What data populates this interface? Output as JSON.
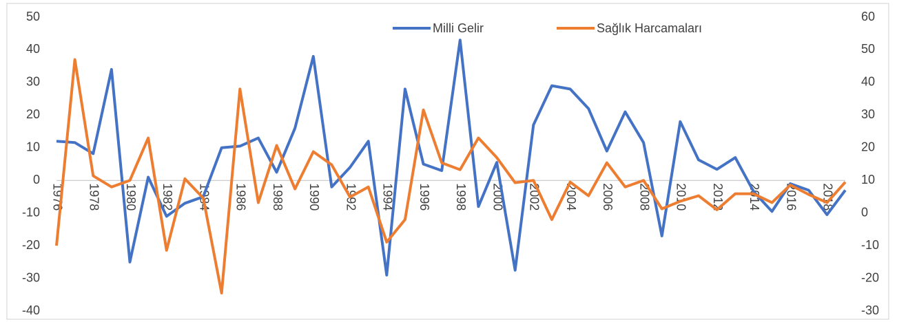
{
  "chart_data": {
    "type": "line",
    "categories": [
      "1976",
      null,
      "1978",
      null,
      "1980",
      null,
      "1982",
      null,
      "1984",
      null,
      "1986",
      null,
      "1988",
      null,
      "1990",
      null,
      "1992",
      null,
      "1994",
      null,
      "1996",
      null,
      "1998",
      null,
      "2000",
      null,
      "2002",
      null,
      "2004",
      null,
      "2006",
      null,
      "2008",
      null,
      "2010",
      null,
      "2012",
      null,
      "2014",
      null,
      "2016",
      null,
      "2018",
      null
    ],
    "series": [
      {
        "name": "Milli Gelir",
        "color": "#4472c4",
        "values": [
          12,
          11.6,
          8.2,
          34,
          -25,
          1,
          -11,
          -7,
          -5,
          10,
          10.5,
          13,
          2.5,
          16,
          38,
          -2,
          4,
          12,
          -29,
          28,
          5,
          3,
          43,
          -8,
          5.5,
          -27.5,
          17,
          29,
          28,
          22,
          9,
          21,
          11.6,
          -17,
          18,
          6.3,
          3.4,
          7,
          -3.4,
          -9.5,
          -1,
          -3,
          -10.5,
          -3
        ]
      },
      {
        "name": "Sağlık Harcamaları",
        "color": "#ed7d31",
        "axis": "y2",
        "values": [
          -10,
          47,
          11.4,
          8,
          10,
          23,
          -11.4,
          10.5,
          4.6,
          -24.5,
          38,
          3.2,
          20.7,
          7.4,
          18.8,
          14.8,
          4.9,
          8,
          -8.9,
          -2,
          31.6,
          15.4,
          13.3,
          23,
          17,
          9.3,
          10,
          -2,
          9.5,
          5.3,
          15.4,
          8,
          10,
          1.3,
          3.6,
          5.3,
          1,
          5.9,
          5.9,
          3.2,
          8.6,
          5.7,
          3.2,
          9.5
        ]
      }
    ],
    "ylim": [
      -40,
      50
    ],
    "yticks": [
      -40,
      -30,
      -20,
      -10,
      0,
      10,
      20,
      30,
      40,
      50
    ],
    "y2lim": [
      -30,
      60
    ],
    "y2ticks": [
      -30,
      -20,
      -10,
      0,
      10,
      20,
      30,
      40,
      50,
      60
    ],
    "grid": false,
    "legend": "top"
  }
}
